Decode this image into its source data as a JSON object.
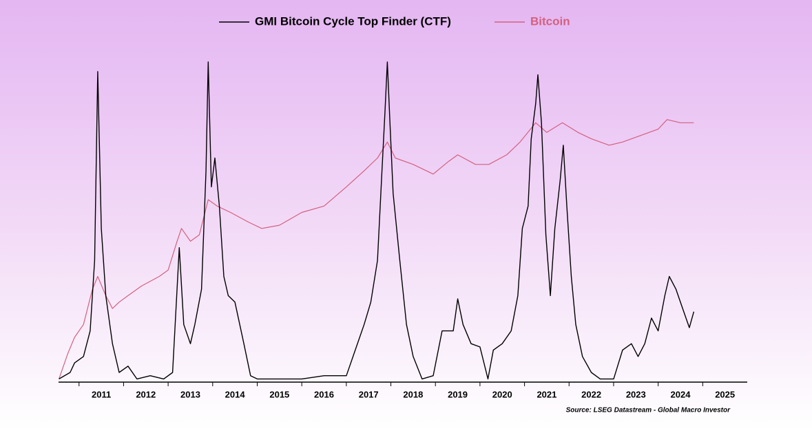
{
  "chart_data": {
    "type": "line",
    "source": "Source: LSEG Datastream - Global Macro Investor",
    "xlim": [
      2010.54,
      2026.0
    ],
    "ylim": [
      0,
      100
    ],
    "xticks": [
      2011,
      2012,
      2013,
      2014,
      2015,
      2016,
      2017,
      2018,
      2019,
      2020,
      2021,
      2022,
      2023,
      2024,
      2025
    ],
    "series": [
      {
        "name": "GMI Bitcoin Cycle Top Finder (CTF)",
        "color": "#000000",
        "x": [
          2010.55,
          2010.8,
          2010.9,
          2011.1,
          2011.25,
          2011.35,
          2011.42,
          2011.5,
          2011.6,
          2011.75,
          2011.9,
          2012.1,
          2012.3,
          2012.6,
          2012.9,
          2013.1,
          2013.25,
          2013.35,
          2013.5,
          2013.6,
          2013.75,
          2013.85,
          2013.9,
          2013.97,
          2014.05,
          2014.15,
          2014.25,
          2014.35,
          2014.5,
          2014.7,
          2014.85,
          2015.0,
          2015.5,
          2016.0,
          2016.5,
          2017.0,
          2017.2,
          2017.4,
          2017.55,
          2017.7,
          2017.8,
          2017.87,
          2017.92,
          2017.98,
          2018.05,
          2018.2,
          2018.35,
          2018.5,
          2018.7,
          2018.95,
          2019.15,
          2019.4,
          2019.5,
          2019.62,
          2019.8,
          2020.0,
          2020.18,
          2020.3,
          2020.5,
          2020.7,
          2020.85,
          2020.95,
          2021.08,
          2021.15,
          2021.25,
          2021.3,
          2021.38,
          2021.48,
          2021.58,
          2021.68,
          2021.8,
          2021.87,
          2021.95,
          2022.05,
          2022.15,
          2022.3,
          2022.5,
          2022.7,
          2023.0,
          2023.2,
          2023.4,
          2023.55,
          2023.7,
          2023.85,
          2024.0,
          2024.15,
          2024.25,
          2024.4,
          2024.55,
          2024.7,
          2024.8
        ],
        "values": [
          1,
          3,
          6,
          8,
          16,
          38,
          97,
          48,
          27,
          12,
          3,
          5,
          1,
          2,
          1,
          3,
          42,
          18,
          12,
          18,
          29,
          66,
          100,
          61,
          70,
          55,
          33,
          27,
          25,
          12,
          2,
          1,
          1,
          1,
          2,
          2,
          10,
          18,
          25,
          38,
          66,
          85,
          100,
          81,
          59,
          38,
          18,
          8,
          1,
          2,
          16,
          16,
          26,
          18,
          12,
          11,
          1,
          10,
          12,
          16,
          27,
          48,
          55,
          76,
          87,
          96,
          81,
          46,
          27,
          48,
          63,
          74,
          55,
          33,
          18,
          8,
          3,
          1,
          1,
          10,
          12,
          8,
          12,
          20,
          16,
          27,
          33,
          29,
          23,
          17,
          22
        ]
      },
      {
        "name": "Bitcoin",
        "color": "#d4607f",
        "x": [
          2010.55,
          2010.75,
          2010.9,
          2011.1,
          2011.3,
          2011.42,
          2011.6,
          2011.75,
          2011.9,
          2012.1,
          2012.4,
          2012.8,
          2013.0,
          2013.2,
          2013.3,
          2013.5,
          2013.7,
          2013.9,
          2014.1,
          2014.4,
          2014.8,
          2015.1,
          2015.5,
          2016.0,
          2016.5,
          2017.0,
          2017.4,
          2017.7,
          2017.92,
          2018.1,
          2018.5,
          2018.95,
          2019.3,
          2019.5,
          2019.9,
          2020.2,
          2020.6,
          2020.9,
          2021.25,
          2021.5,
          2021.85,
          2022.2,
          2022.5,
          2022.9,
          2023.2,
          2023.6,
          2024.0,
          2024.2,
          2024.5,
          2024.8
        ],
        "values": [
          1,
          9,
          14,
          18,
          29,
          33,
          27,
          23,
          25,
          27,
          30,
          33,
          35,
          44,
          48,
          44,
          46,
          57,
          55,
          53,
          50,
          48,
          49,
          53,
          55,
          61,
          66,
          70,
          75,
          70,
          68,
          65,
          69,
          71,
          68,
          68,
          71,
          75,
          81,
          78,
          81,
          78,
          76,
          74,
          75,
          77,
          79,
          82,
          81,
          81
        ]
      }
    ]
  }
}
